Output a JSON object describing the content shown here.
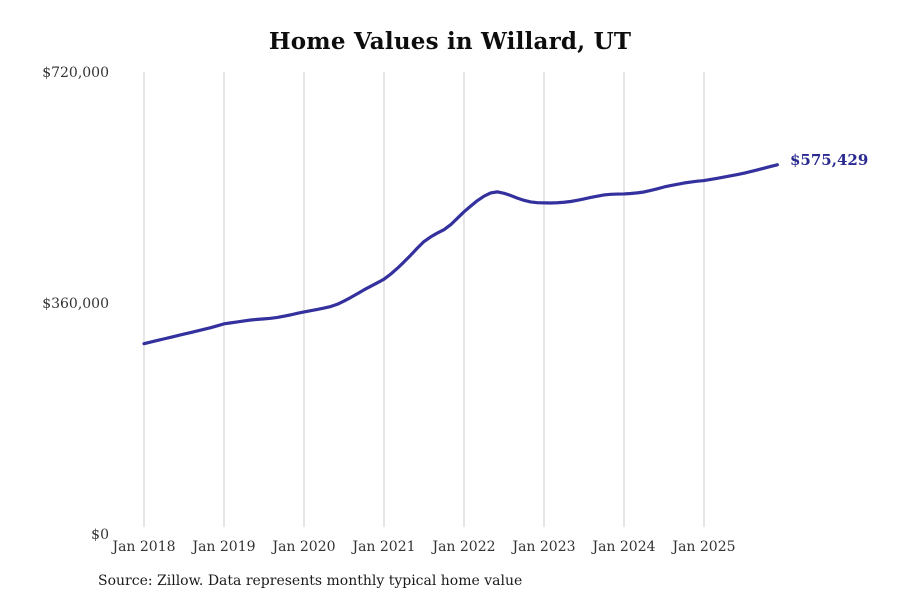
{
  "title": "Home Values in Willard, UT",
  "source_note": "Source: Zillow. Data represents monthly typical home value",
  "chart_data": {
    "type": "line",
    "title": "Home Values in Willard, UT",
    "xlabel": "",
    "ylabel": "",
    "ylim": [
      0,
      720000
    ],
    "grid": "vertical-only",
    "legend": "none",
    "x_tick_labels": [
      "Jan 2018",
      "Jan 2019",
      "Jan 2020",
      "Jan 2021",
      "Jan 2022",
      "Jan 2023",
      "Jan 2024",
      "Jan 2025"
    ],
    "y_ticks": [
      {
        "label": "$0",
        "value": 0
      },
      {
        "label": "$360,000",
        "value": 360000
      },
      {
        "label": "$720,000",
        "value": 720000
      }
    ],
    "final_value": 575429,
    "final_value_label": "$575,429",
    "colors": {
      "line": "#34319e",
      "end_label": "#2b2a90",
      "grid": "#cccccc",
      "tick_text": "#333333"
    },
    "series": [
      {
        "name": "Monthly typical home value",
        "start_month": "2018-01",
        "months_per_point": 1,
        "values": [
          296600,
          299100,
          301600,
          304100,
          306600,
          309100,
          311500,
          314000,
          316500,
          319000,
          321500,
          324500,
          327500,
          329000,
          330500,
          332000,
          333500,
          334500,
          335300,
          336100,
          337500,
          339500,
          341500,
          344000,
          346100,
          348000,
          350000,
          352100,
          354500,
          358000,
          363000,
          368500,
          374500,
          380500,
          386000,
          391500,
          397100,
          405000,
          414000,
          424000,
          434500,
          445500,
          455800,
          463000,
          469000,
          474300,
          482000,
          492000,
          502100,
          511000,
          519500,
          526500,
          531500,
          533200,
          531000,
          527500,
          523500,
          520000,
          517500,
          516300,
          516000,
          515800,
          516200,
          517000,
          518200,
          520100,
          522200,
          524500,
          526500,
          528400,
          529400,
          529800,
          530000,
          530600,
          531600,
          533000,
          535500,
          538000,
          540800,
          543000,
          545000,
          547000,
          548500,
          549800,
          550800,
          552500,
          554300,
          556200,
          558200,
          560200,
          562400,
          564800,
          567400,
          570100,
          572800,
          575429
        ]
      }
    ]
  }
}
